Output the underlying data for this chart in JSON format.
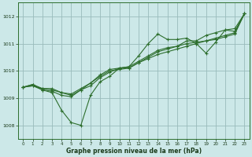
{
  "background_color": "#cce8e8",
  "plot_bg_color": "#cce8e8",
  "grid_color": "#99bbbb",
  "line_color": "#2d6e2d",
  "xlabel": "Graphe pression niveau de la mer (hPa)",
  "xlim": [
    -0.5,
    23.5
  ],
  "ylim": [
    1007.5,
    1012.5
  ],
  "yticks": [
    1008,
    1009,
    1010,
    1011,
    1012
  ],
  "xticks": [
    0,
    1,
    2,
    3,
    4,
    5,
    6,
    7,
    8,
    9,
    10,
    11,
    12,
    13,
    14,
    15,
    16,
    17,
    18,
    19,
    20,
    21,
    22,
    23
  ],
  "series": [
    [
      1009.4,
      1009.5,
      1009.3,
      1009.2,
      1008.55,
      1008.1,
      1008.0,
      1009.1,
      1009.6,
      1009.8,
      1010.1,
      1010.15,
      1010.55,
      1011.0,
      1011.35,
      1011.15,
      1011.15,
      1011.2,
      1011.0,
      1010.65,
      1011.05,
      1011.5,
      1011.45,
      1012.1
    ],
    [
      1009.4,
      1009.45,
      1009.3,
      1009.25,
      1009.1,
      1009.05,
      1009.3,
      1009.55,
      1009.85,
      1010.05,
      1010.1,
      1010.15,
      1010.35,
      1010.55,
      1010.75,
      1010.85,
      1010.9,
      1011.0,
      1011.05,
      1011.1,
      1011.15,
      1011.25,
      1011.35,
      1012.1
    ],
    [
      1009.4,
      1009.45,
      1009.35,
      1009.3,
      1009.2,
      1009.15,
      1009.35,
      1009.55,
      1009.8,
      1010.0,
      1010.05,
      1010.1,
      1010.3,
      1010.45,
      1010.6,
      1010.7,
      1010.8,
      1010.9,
      1011.0,
      1011.1,
      1011.2,
      1011.3,
      1011.4,
      1012.1
    ],
    [
      1009.4,
      1009.5,
      1009.35,
      1009.35,
      1009.2,
      1009.1,
      1009.3,
      1009.45,
      1009.75,
      1009.95,
      1010.1,
      1010.1,
      1010.3,
      1010.5,
      1010.7,
      1010.8,
      1010.9,
      1011.1,
      1011.1,
      1011.3,
      1011.4,
      1011.5,
      1011.55,
      1012.1
    ]
  ]
}
